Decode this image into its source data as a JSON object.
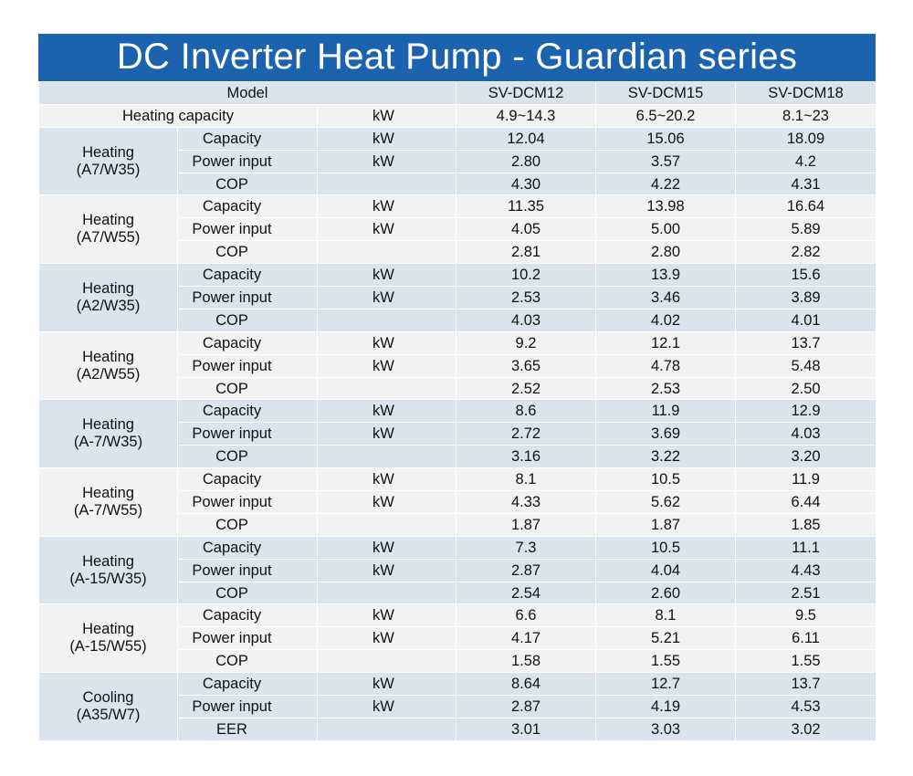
{
  "title": "DC Inverter Heat Pump - Guardian series",
  "header": {
    "model_label": "Model",
    "models": [
      "SV-DCM12",
      "SV-DCM15",
      "SV-DCM18"
    ]
  },
  "heating_capacity": {
    "label": "Heating capacity",
    "unit": "kW",
    "values": [
      "4.9~14.3",
      "6.5~20.2",
      "8.1~23"
    ]
  },
  "groups": [
    {
      "label": [
        "Heating",
        "(A7/W35)"
      ],
      "rows": [
        {
          "label": "Capacity",
          "unit": "kW",
          "values": [
            "12.04",
            "15.06",
            "18.09"
          ]
        },
        {
          "label": "Power input",
          "unit": "kW",
          "values": [
            "2.80",
            "3.57",
            "4.2"
          ]
        },
        {
          "label": "COP",
          "unit": "",
          "values": [
            "4.30",
            "4.22",
            "4.31"
          ]
        }
      ]
    },
    {
      "label": [
        "Heating",
        "(A7/W55)"
      ],
      "rows": [
        {
          "label": "Capacity",
          "unit": "kW",
          "values": [
            "11.35",
            "13.98",
            "16.64"
          ]
        },
        {
          "label": "Power input",
          "unit": "kW",
          "values": [
            "4.05",
            "5.00",
            "5.89"
          ]
        },
        {
          "label": "COP",
          "unit": "",
          "values": [
            "2.81",
            "2.80",
            "2.82"
          ]
        }
      ]
    },
    {
      "label": [
        "Heating",
        "(A2/W35)"
      ],
      "rows": [
        {
          "label": "Capacity",
          "unit": "kW",
          "values": [
            "10.2",
            "13.9",
            "15.6"
          ]
        },
        {
          "label": "Power input",
          "unit": "kW",
          "values": [
            "2.53",
            "3.46",
            "3.89"
          ]
        },
        {
          "label": "COP",
          "unit": "",
          "values": [
            "4.03",
            "4.02",
            "4.01"
          ]
        }
      ]
    },
    {
      "label": [
        "Heating",
        "(A2/W55)"
      ],
      "rows": [
        {
          "label": "Capacity",
          "unit": "kW",
          "values": [
            "9.2",
            "12.1",
            "13.7"
          ]
        },
        {
          "label": "Power input",
          "unit": "kW",
          "values": [
            "3.65",
            "4.78",
            "5.48"
          ]
        },
        {
          "label": "COP",
          "unit": "",
          "values": [
            "2.52",
            "2.53",
            "2.50"
          ]
        }
      ]
    },
    {
      "label": [
        "Heating",
        "(A-7/W35)"
      ],
      "rows": [
        {
          "label": "Capacity",
          "unit": "kW",
          "values": [
            "8.6",
            "11.9",
            "12.9"
          ]
        },
        {
          "label": "Power input",
          "unit": "kW",
          "values": [
            "2.72",
            "3.69",
            "4.03"
          ]
        },
        {
          "label": "COP",
          "unit": "",
          "values": [
            "3.16",
            "3.22",
            "3.20"
          ]
        }
      ]
    },
    {
      "label": [
        "Heating",
        "(A-7/W55)"
      ],
      "rows": [
        {
          "label": "Capacity",
          "unit": "kW",
          "values": [
            "8.1",
            "10.5",
            "11.9"
          ]
        },
        {
          "label": "Power input",
          "unit": "kW",
          "values": [
            "4.33",
            "5.62",
            "6.44"
          ]
        },
        {
          "label": "COP",
          "unit": "",
          "values": [
            "1.87",
            "1.87",
            "1.85"
          ]
        }
      ]
    },
    {
      "label": [
        "Heating",
        "(A-15/W35)"
      ],
      "rows": [
        {
          "label": "Capacity",
          "unit": "kW",
          "values": [
            "7.3",
            "10.5",
            "11.1"
          ]
        },
        {
          "label": "Power input",
          "unit": "kW",
          "values": [
            "2.87",
            "4.04",
            "4.43"
          ]
        },
        {
          "label": "COP",
          "unit": "",
          "values": [
            "2.54",
            "2.60",
            "2.51"
          ]
        }
      ]
    },
    {
      "label": [
        "Heating",
        "(A-15/W55)"
      ],
      "rows": [
        {
          "label": "Capacity",
          "unit": "kW",
          "values": [
            "6.6",
            "8.1",
            "9.5"
          ]
        },
        {
          "label": "Power input",
          "unit": "kW",
          "values": [
            "4.17",
            "5.21",
            "6.11"
          ]
        },
        {
          "label": "COP",
          "unit": "",
          "values": [
            "1.58",
            "1.55",
            "1.55"
          ]
        }
      ]
    },
    {
      "label": [
        "Cooling",
        "(A35/W7)"
      ],
      "rows": [
        {
          "label": "Capacity",
          "unit": "kW",
          "values": [
            "8.64",
            "12.7",
            "13.7"
          ]
        },
        {
          "label": "Power input",
          "unit": "kW",
          "values": [
            "2.87",
            "4.19",
            "4.53"
          ]
        },
        {
          "label": "EER",
          "unit": "",
          "values": [
            "3.01",
            "3.03",
            "3.02"
          ]
        }
      ]
    }
  ],
  "colors": {
    "title_bg": "#1b63ae",
    "title_text": "#ffffff",
    "row_tint": "#dbe3ee",
    "row_plain": "#f2f2f2"
  }
}
